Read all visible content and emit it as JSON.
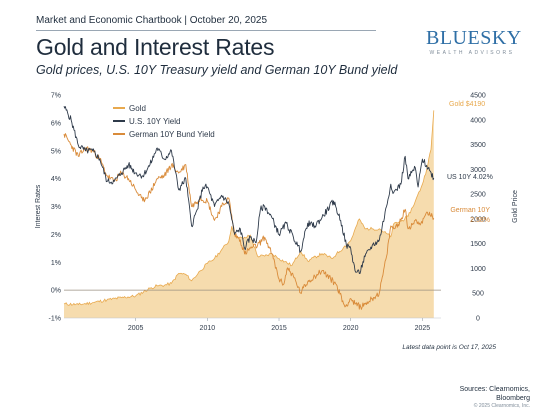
{
  "header": {
    "subheader": "Market and Economic Chartbook | October 20, 2025",
    "title": "Gold and Interest Rates",
    "subtitle": "Gold prices, U.S. 10Y Treasury yield and German 10Y Bund yield"
  },
  "logo": {
    "main": "BLUESKY",
    "sub": "WEALTH ADVISORS"
  },
  "colors": {
    "gold": "#e8a94e",
    "gold_fill": "#f6dcae",
    "us": "#2e3a4a",
    "german": "#d98b3a",
    "zero_line": "#9a8f80",
    "axis_text": "#2e3a4a"
  },
  "chart_data": {
    "type": "line",
    "title": "Gold and Interest Rates",
    "ylabel_left": "Interest Rates",
    "ylabel_right": "Gold Price",
    "x_ticks": [
      "2005",
      "2010",
      "2015",
      "2020",
      "2025"
    ],
    "y_left_ticks": [
      "7%",
      "6%",
      "5%",
      "4%",
      "3%",
      "2%",
      "1%",
      "0%",
      "-1%"
    ],
    "y_right_ticks": [
      "4500",
      "4000",
      "3500",
      "3000",
      "2500",
      "2000",
      "1500",
      "1000",
      "500",
      "0"
    ],
    "xlim": [
      2000.0,
      2026.3
    ],
    "ylim_left": [
      -1,
      7
    ],
    "ylim_right": [
      0,
      4500
    ],
    "legend_position": "top-left",
    "series": [
      {
        "name": "Gold",
        "axis": "right",
        "style": "area",
        "x": [
          2000.0,
          2001.0,
          2002.0,
          2003.0,
          2004.0,
          2005.0,
          2006.0,
          2006.5,
          2007.0,
          2007.5,
          2008.0,
          2008.5,
          2008.9,
          2009.5,
          2010.0,
          2010.5,
          2011.0,
          2011.5,
          2011.7,
          2012.0,
          2012.5,
          2013.0,
          2013.5,
          2014.0,
          2014.5,
          2015.0,
          2015.9,
          2016.5,
          2017.0,
          2018.0,
          2018.7,
          2019.0,
          2019.5,
          2020.0,
          2020.6,
          2021.0,
          2021.5,
          2022.0,
          2022.8,
          2023.0,
          2023.5,
          2024.0,
          2024.5,
          2025.0,
          2025.3,
          2025.6,
          2025.8
        ],
        "values": [
          285,
          270,
          310,
          365,
          410,
          445,
          600,
          650,
          660,
          700,
          900,
          880,
          750,
          950,
          1100,
          1200,
          1380,
          1550,
          1850,
          1650,
          1600,
          1670,
          1250,
          1250,
          1300,
          1200,
          1060,
          1350,
          1150,
          1300,
          1200,
          1290,
          1420,
          1560,
          2000,
          1800,
          1800,
          1800,
          1640,
          1900,
          1950,
          2050,
          2350,
          2700,
          3000,
          3400,
          4190
        ]
      },
      {
        "name": "U.S. 10Y Yield",
        "axis": "left",
        "style": "line",
        "x": [
          2000.0,
          2000.5,
          2001.0,
          2001.5,
          2002.0,
          2002.5,
          2003.0,
          2003.5,
          2004.0,
          2004.5,
          2005.0,
          2005.5,
          2006.0,
          2006.5,
          2007.0,
          2007.5,
          2008.0,
          2008.5,
          2008.9,
          2009.3,
          2009.7,
          2010.0,
          2010.5,
          2011.0,
          2011.5,
          2011.9,
          2012.3,
          2012.6,
          2013.0,
          2013.4,
          2013.7,
          2014.0,
          2014.5,
          2015.0,
          2015.5,
          2016.0,
          2016.5,
          2017.0,
          2017.5,
          2018.0,
          2018.8,
          2019.3,
          2019.7,
          2020.0,
          2020.3,
          2020.6,
          2021.0,
          2021.5,
          2022.0,
          2022.5,
          2022.8,
          2023.0,
          2023.5,
          2023.8,
          2024.0,
          2024.5,
          2024.7,
          2025.0,
          2025.5,
          2025.8
        ],
        "values": [
          6.6,
          6.1,
          5.2,
          5.0,
          5.0,
          4.7,
          3.9,
          3.9,
          4.2,
          4.5,
          4.2,
          4.1,
          4.5,
          5.1,
          4.7,
          5.0,
          3.6,
          4.0,
          2.3,
          2.9,
          3.7,
          3.7,
          3.0,
          3.4,
          3.1,
          2.0,
          2.2,
          1.5,
          1.9,
          1.7,
          2.9,
          3.0,
          2.6,
          2.0,
          2.4,
          1.9,
          1.4,
          2.4,
          2.3,
          2.6,
          3.2,
          2.5,
          1.6,
          1.5,
          0.7,
          0.6,
          1.2,
          1.6,
          1.8,
          3.0,
          3.8,
          3.5,
          3.8,
          4.8,
          4.0,
          4.4,
          3.7,
          4.7,
          4.3,
          4.02
        ]
      },
      {
        "name": "German 10Y Bund Yield",
        "axis": "left",
        "style": "line",
        "x": [
          2000.0,
          2000.5,
          2001.0,
          2001.5,
          2002.0,
          2002.5,
          2003.0,
          2003.5,
          2004.0,
          2004.5,
          2005.0,
          2005.5,
          2006.0,
          2006.5,
          2007.0,
          2007.5,
          2008.0,
          2008.5,
          2008.9,
          2009.5,
          2010.0,
          2010.5,
          2011.0,
          2011.5,
          2011.9,
          2012.3,
          2012.6,
          2013.0,
          2013.5,
          2014.0,
          2014.5,
          2015.0,
          2015.3,
          2015.6,
          2016.0,
          2016.5,
          2017.0,
          2017.5,
          2018.0,
          2018.6,
          2019.0,
          2019.6,
          2020.0,
          2020.3,
          2020.7,
          2021.0,
          2021.5,
          2022.0,
          2022.5,
          2022.8,
          2023.0,
          2023.5,
          2023.8,
          2024.0,
          2024.5,
          2025.0,
          2025.3,
          2025.8
        ],
        "values": [
          5.6,
          5.2,
          4.8,
          5.1,
          5.0,
          4.7,
          4.1,
          3.9,
          4.2,
          4.0,
          3.6,
          3.2,
          3.5,
          4.0,
          4.1,
          4.5,
          4.2,
          4.5,
          3.0,
          3.3,
          3.2,
          2.5,
          3.0,
          3.3,
          2.0,
          1.8,
          1.3,
          1.5,
          1.6,
          1.9,
          1.3,
          0.4,
          0.2,
          0.8,
          0.5,
          -0.1,
          0.3,
          0.5,
          0.7,
          0.4,
          0.2,
          -0.6,
          -0.3,
          -0.5,
          -0.6,
          -0.5,
          -0.3,
          -0.1,
          1.2,
          2.3,
          2.2,
          2.5,
          2.9,
          2.2,
          2.5,
          2.4,
          2.8,
          2.58
        ]
      }
    ],
    "annotations": [
      {
        "text": "Gold $4190",
        "series": "Gold"
      },
      {
        "text": "US 10Y 4.02%",
        "series": "U.S. 10Y Yield"
      },
      {
        "text": "German 10Y",
        "series": "German 10Y Bund Yield"
      },
      {
        "text": "2.58%",
        "series": "German 10Y Bund Yield"
      }
    ]
  },
  "footer": {
    "note": "Latest data point is Oct 17, 2025",
    "sources_line1": "Sources: Clearnomics,",
    "sources_line2": "Bloomberg",
    "copyright": "© 2025 Clearnomics, Inc."
  }
}
